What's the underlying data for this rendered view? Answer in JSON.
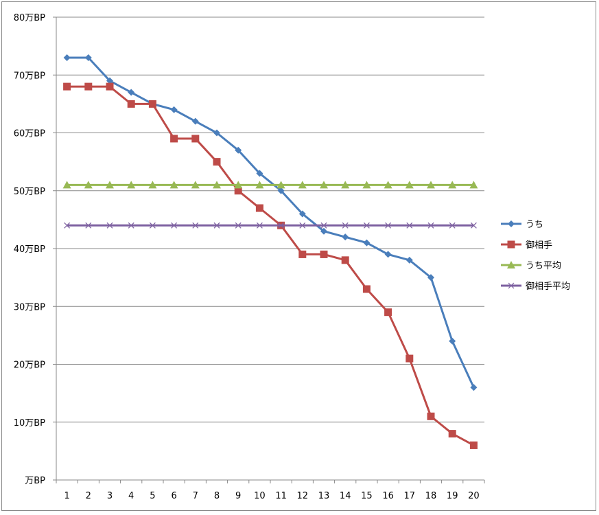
{
  "chart_data": {
    "type": "line",
    "title": "",
    "xlabel": "",
    "ylabel": "",
    "categories": [
      "1",
      "2",
      "3",
      "4",
      "5",
      "6",
      "7",
      "8",
      "9",
      "10",
      "11",
      "12",
      "13",
      "14",
      "15",
      "16",
      "17",
      "18",
      "19",
      "20"
    ],
    "ylim": [
      0,
      80
    ],
    "yticks": [
      0,
      10,
      20,
      30,
      40,
      50,
      60,
      70,
      80
    ],
    "ytick_labels": [
      "万BP",
      "10万BP",
      "20万BP",
      "30万BP",
      "40万BP",
      "50万BP",
      "60万BP",
      "70万BP",
      "80万BP"
    ],
    "grid": true,
    "legend_position": "right",
    "series": [
      {
        "name": "うち",
        "color": "#4a7ebb",
        "marker": "diamond",
        "values": [
          73,
          73,
          69,
          67,
          65,
          64,
          62,
          60,
          57,
          53,
          50,
          46,
          43,
          42,
          41,
          39,
          38,
          35,
          24,
          16
        ]
      },
      {
        "name": "御相手",
        "color": "#be4b48",
        "marker": "square",
        "values": [
          68,
          68,
          68,
          65,
          65,
          59,
          59,
          55,
          50,
          47,
          44,
          39,
          39,
          38,
          33,
          29,
          21,
          11,
          8,
          6
        ]
      },
      {
        "name": "うち平均",
        "color": "#98b954",
        "marker": "triangle",
        "values": [
          51,
          51,
          51,
          51,
          51,
          51,
          51,
          51,
          51,
          51,
          51,
          51,
          51,
          51,
          51,
          51,
          51,
          51,
          51,
          51
        ]
      },
      {
        "name": "御相手平均",
        "color": "#7d60a0",
        "marker": "x",
        "values": [
          44,
          44,
          44,
          44,
          44,
          44,
          44,
          44,
          44,
          44,
          44,
          44,
          44,
          44,
          44,
          44,
          44,
          44,
          44,
          44
        ]
      }
    ]
  }
}
